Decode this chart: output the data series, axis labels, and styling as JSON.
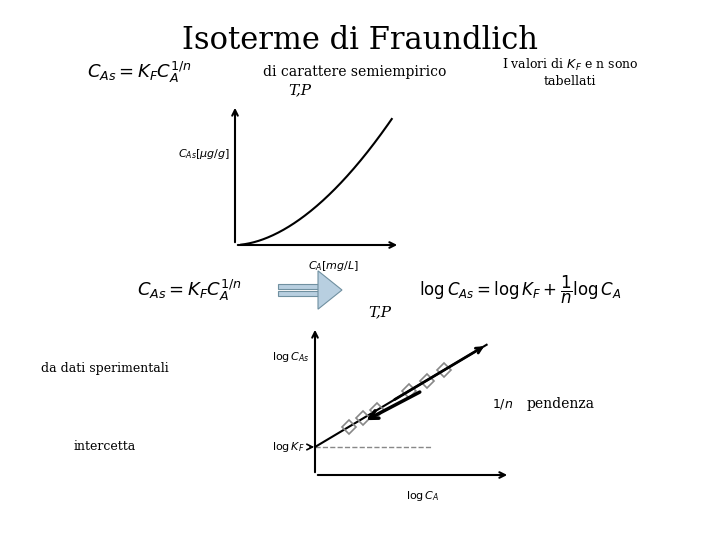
{
  "title": "Isoterme di Fraundlich",
  "title_fontsize": 22,
  "bg_color": "#ffffff",
  "formula1": "$C_{As} = K_F C_A^{1/n}$",
  "text_semiempirico": "di carattere semiempirico",
  "text_tabellati": "I valori di $K_F$ e n sono\ntabellati",
  "label_TP1": "T,P",
  "label_CAs_axis": "$C_{As}[\\mu g/g]$",
  "label_CA_axis": "$C_A[mg/L]$",
  "formula2_left": "$C_{As} = K_F C_A^{1/n}$",
  "formula2_right": "$\\log C_{As} = \\log K_F + \\dfrac{1}{n} \\log C_A$",
  "label_da_dati": "da dati sperimentali",
  "label_TP2": "T,P",
  "label_log_CAs": "$\\log C_{As}$",
  "label_log_KF": "$\\log K_F$",
  "label_log_CA": "$\\log C_A$",
  "label_intercetta": "intercetta",
  "label_pendenza": "pendenza",
  "label_1n": "$1/n$",
  "arrow_fill_color": "#b8cfe0",
  "arrow_edge_color": "#7090a0",
  "line_color": "#000000",
  "diamond_color": "#888888",
  "dashed_color": "#888888"
}
